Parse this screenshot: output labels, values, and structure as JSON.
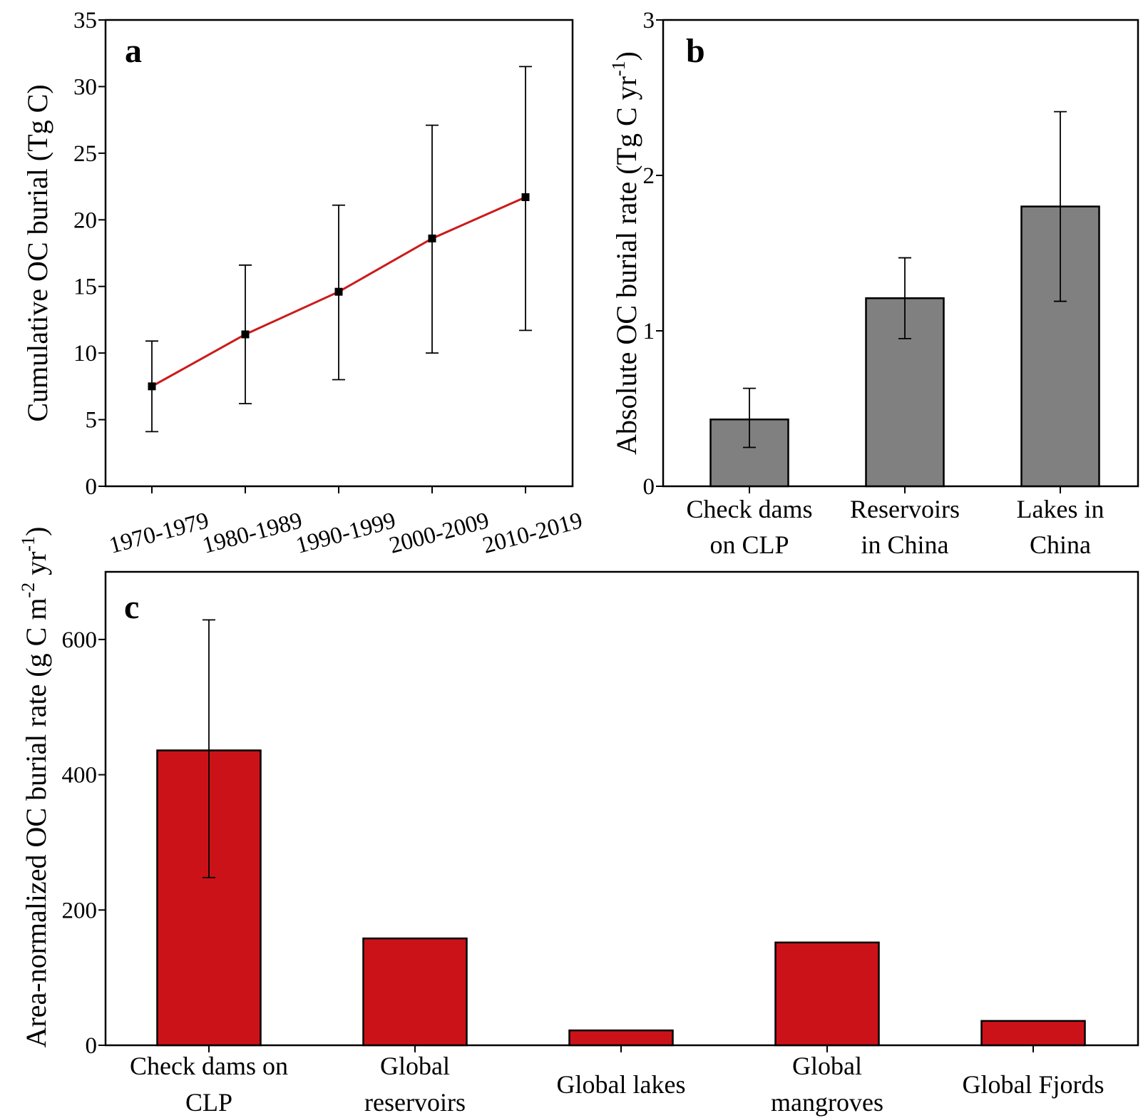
{
  "chart_data": [
    {
      "panel": "a",
      "type": "line",
      "title": "",
      "xlabel": "",
      "ylabel": "Cumulative OC burial (Tg C)",
      "categories": [
        "1970-1979",
        "1980-1989",
        "1990-1999",
        "2000-2009",
        "2010-2019"
      ],
      "values": [
        7.5,
        11.4,
        14.6,
        18.6,
        21.7
      ],
      "error_low": [
        4.1,
        6.2,
        8.0,
        10.0,
        11.7
      ],
      "error_high": [
        10.9,
        16.6,
        21.1,
        27.1,
        31.5
      ],
      "ylim": [
        0,
        35
      ],
      "yticks": [
        0,
        5,
        10,
        15,
        20,
        25,
        30,
        35
      ],
      "line_color": "#cc1a1a",
      "marker_color": "#000000",
      "grid": false
    },
    {
      "panel": "b",
      "type": "bar",
      "title": "",
      "xlabel": "",
      "ylabel": "Absolute OC burial rate (Tg C yr",
      "ylabel_sup": "-1",
      "ylabel_end": ")",
      "categories": [
        [
          "Check dams",
          "on CLP"
        ],
        [
          "Reservoirs",
          "in China"
        ],
        [
          "Lakes in",
          "China"
        ]
      ],
      "values": [
        0.43,
        1.21,
        1.8
      ],
      "error_low": [
        0.25,
        0.95,
        1.19
      ],
      "error_high": [
        0.63,
        1.47,
        2.41
      ],
      "ylim": [
        0,
        3
      ],
      "yticks": [
        0,
        1,
        2,
        3
      ],
      "bar_color": "#808080",
      "grid": false
    },
    {
      "panel": "c",
      "type": "bar",
      "title": "",
      "xlabel": "",
      "ylabel": "Area-normalized OC burial rate (g C m",
      "ylabel_sup1": "-2",
      "ylabel_mid": " yr",
      "ylabel_sup2": "-1",
      "ylabel_end": ")",
      "categories": [
        [
          "Check dams on",
          "CLP"
        ],
        [
          "Global",
          "reservoirs"
        ],
        [
          "Global lakes"
        ],
        [
          "Global",
          "mangroves"
        ],
        [
          "Global Fjords"
        ]
      ],
      "values": [
        436,
        158,
        22,
        152,
        36
      ],
      "error_low": [
        248,
        null,
        null,
        null,
        null
      ],
      "error_high": [
        629,
        null,
        null,
        null,
        null
      ],
      "ylim": [
        0,
        700
      ],
      "yticks": [
        0,
        200,
        400,
        600
      ],
      "bar_color": "#cc1219",
      "grid": false
    }
  ]
}
